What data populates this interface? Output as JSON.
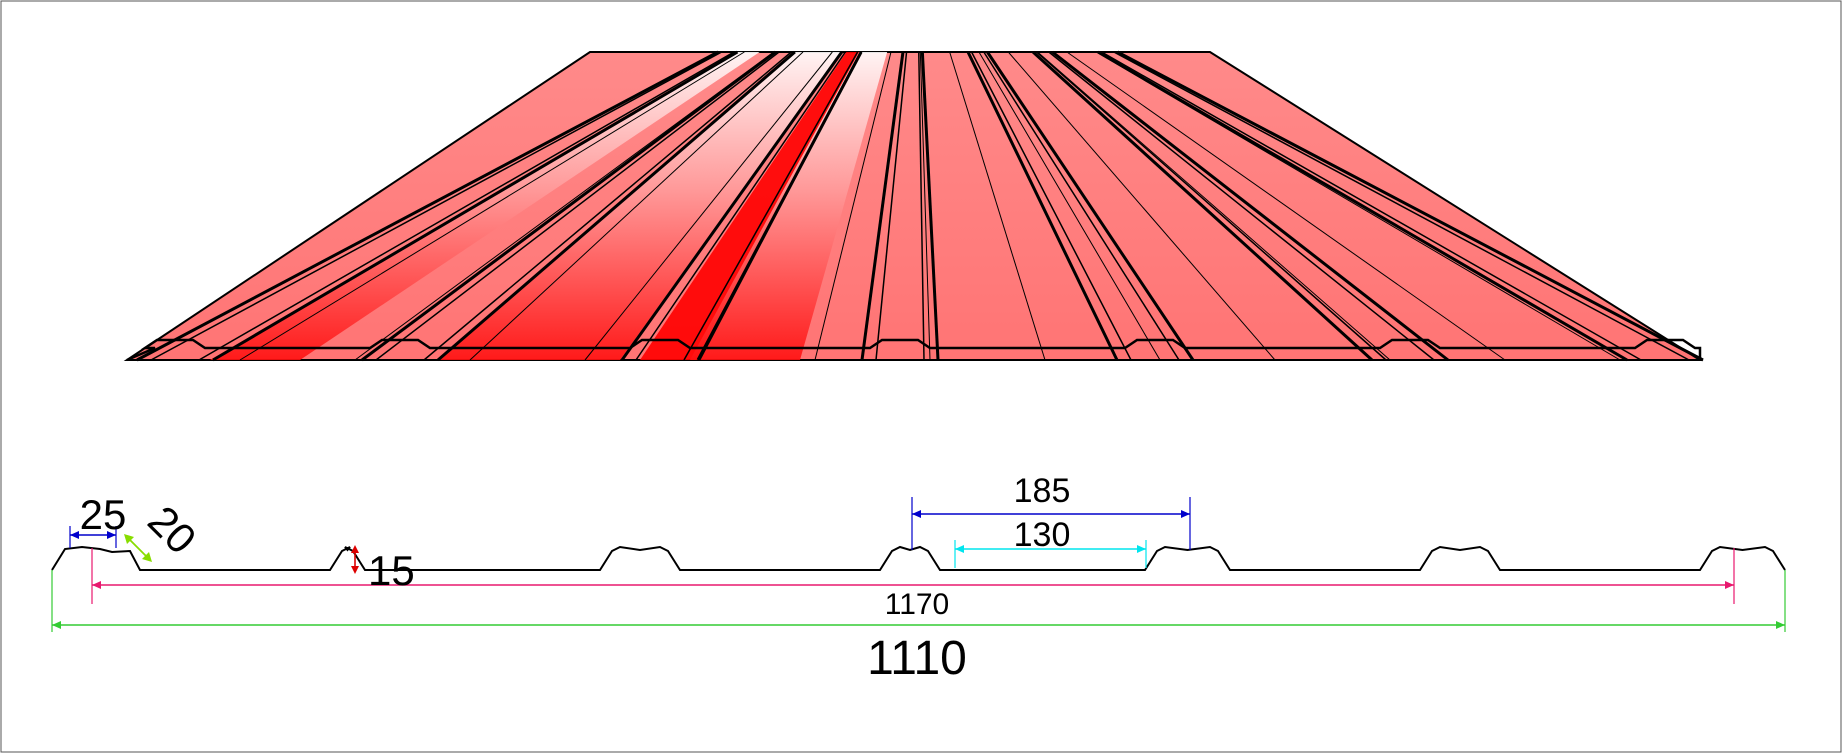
{
  "diagram": {
    "colors": {
      "sheet_main": "#ff7f7f",
      "sheet_highlight": "#ffffff",
      "sheet_shadow": "#ff0000",
      "outline": "#000000",
      "dim_pitch": "#0000cc",
      "dim_pan": "#00e5ee",
      "dim_cover": "#e8186e",
      "dim_total": "#33cc33",
      "dim_height": "#dd0000",
      "dim_slope": "#88dd00",
      "dim_rib_top": "#0000cc"
    },
    "dimensions": {
      "rib_top": "25",
      "rib_slope": "20",
      "rib_height": "15",
      "pitch": "185",
      "pan": "130",
      "cover_width": "1170",
      "total_width": "1110"
    }
  }
}
